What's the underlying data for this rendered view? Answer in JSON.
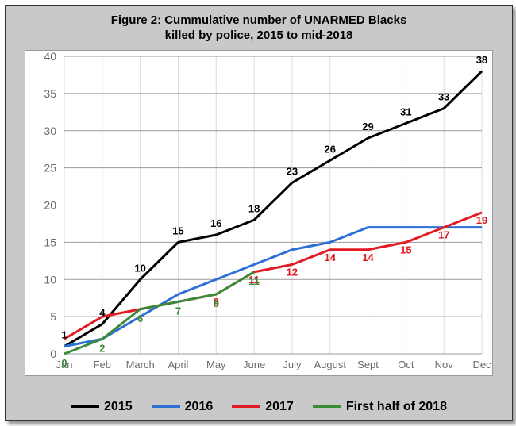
{
  "chart": {
    "type": "line",
    "title_line1": "Figure 2: Cummulative number of UNARMED Blacks",
    "title_line2": "killed by police, 2015 to mid-2018",
    "title_fontsize": 15,
    "background_color": "#c9c9c9",
    "plot_background": "#ffffff",
    "grid_color": "#9a9a9a",
    "axis_label_color": "#6a6a6a",
    "x_categories": [
      "Jan",
      "Feb",
      "March",
      "April",
      "May",
      "June",
      "July",
      "August",
      "Sept",
      "Oct",
      "Nov",
      "Dec"
    ],
    "ylim": [
      0,
      40
    ],
    "ytick_step": 5,
    "line_width": 3,
    "series": [
      {
        "name": "2015",
        "color": "#000000",
        "values": [
          1,
          4,
          10,
          15,
          16,
          18,
          23,
          26,
          29,
          31,
          33,
          38
        ],
        "show_labels": true,
        "label_offset_y": -10
      },
      {
        "name": "2016",
        "color": "#2e6fd6",
        "values": [
          1,
          2,
          5,
          8,
          10,
          12,
          14,
          15,
          17,
          17,
          17,
          17
        ],
        "show_labels": false
      },
      {
        "name": "2017",
        "color": "#e11b23",
        "values": [
          2,
          5,
          6,
          7,
          8,
          11,
          12,
          14,
          14,
          15,
          17,
          19
        ],
        "show_labels": true,
        "label_offset_y": 14,
        "label_skip": [
          0,
          1,
          2,
          3
        ],
        "extra_labels": [
          {
            "x": 11,
            "text": "19",
            "dx": 14,
            "dy": 9
          }
        ]
      },
      {
        "name": "First half of 2018",
        "color": "#3a8a3a",
        "values": [
          0,
          2,
          6,
          7,
          8,
          11
        ],
        "show_labels": true,
        "label_offset_y": 16
      }
    ],
    "legend_fontsize": 16
  }
}
